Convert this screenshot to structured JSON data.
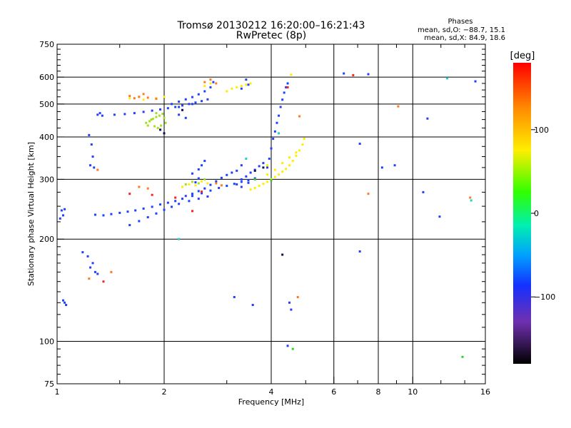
{
  "header": {
    "title_line1": "Tromsø 20130212 16:20:00–16:21:43",
    "title_line2": "RwPretec (8p)",
    "phase_title": "Phases",
    "phase_o": "mean, sd,O: −88.7, 15.1",
    "phase_x": "mean, sd,X:  84.9, 18.6"
  },
  "colorbar": {
    "unit_label": "[deg]",
    "range": [
      -180,
      180
    ],
    "ticks": [
      {
        "value": 100,
        "label": "100"
      },
      {
        "value": 0,
        "label": "0"
      },
      {
        "value": -100,
        "label": "−100"
      }
    ]
  },
  "chart_data": {
    "type": "scatter",
    "xlabel": "Frequency [MHz]",
    "ylabel": "Stationary phase Virtual Height [km]",
    "x_scale": "log",
    "y_scale": "log",
    "xlim": [
      1,
      16
    ],
    "ylim": [
      75,
      750
    ],
    "x_ticks": [
      {
        "value": 1,
        "label": "1"
      },
      {
        "value": 2,
        "label": "2"
      },
      {
        "value": 4,
        "label": "4"
      },
      {
        "value": 6,
        "label": "6"
      },
      {
        "value": 8,
        "label": "8"
      },
      {
        "value": 10,
        "label": "10"
      },
      {
        "value": 16,
        "label": "16"
      }
    ],
    "x_grid": [
      2,
      4,
      6,
      8,
      10
    ],
    "y_ticks": [
      {
        "value": 75,
        "label": "75"
      },
      {
        "value": 100,
        "label": "100"
      },
      {
        "value": 200,
        "label": "200"
      },
      {
        "value": 300,
        "label": "300"
      },
      {
        "value": 400,
        "label": "400"
      },
      {
        "value": 500,
        "label": "500"
      },
      {
        "value": 600,
        "label": "600"
      },
      {
        "value": 750,
        "label": "750"
      }
    ],
    "y_grid": [
      100,
      200,
      300,
      400,
      500,
      600
    ],
    "grid": true,
    "series": [
      {
        "color": "#2040ff",
        "points": [
          [
            1.28,
            236
          ],
          [
            1.35,
            235
          ],
          [
            1.42,
            237
          ],
          [
            1.5,
            239
          ],
          [
            1.58,
            241
          ],
          [
            1.66,
            243
          ],
          [
            1.75,
            246
          ],
          [
            1.85,
            249
          ],
          [
            1.95,
            253
          ],
          [
            2.05,
            256
          ],
          [
            2.15,
            259
          ],
          [
            2.25,
            263
          ],
          [
            2.4,
            268
          ],
          [
            2.55,
            273
          ],
          [
            2.7,
            278
          ],
          [
            2.85,
            283
          ],
          [
            3.0,
            287
          ],
          [
            3.15,
            291
          ],
          [
            3.3,
            295
          ],
          [
            3.45,
            298
          ],
          [
            1.6,
            220
          ],
          [
            1.7,
            226
          ],
          [
            1.8,
            232
          ],
          [
            1.9,
            238
          ],
          [
            2.0,
            244
          ],
          [
            2.1,
            249
          ],
          [
            2.2,
            254
          ],
          [
            2.35,
            259
          ],
          [
            2.5,
            263
          ],
          [
            2.65,
            267
          ],
          [
            2.3,
            268
          ],
          [
            2.4,
            272
          ],
          [
            2.5,
            277
          ],
          [
            2.6,
            282
          ],
          [
            2.7,
            289
          ],
          [
            2.8,
            296
          ],
          [
            2.9,
            303
          ],
          [
            3.0,
            309
          ],
          [
            3.1,
            314
          ],
          [
            3.2,
            318
          ],
          [
            2.4,
            312
          ],
          [
            2.5,
            321
          ],
          [
            2.55,
            330
          ],
          [
            2.6,
            340
          ],
          [
            2.5,
            302
          ],
          [
            2.45,
            294
          ],
          [
            3.2,
            290
          ],
          [
            3.3,
            300
          ],
          [
            3.4,
            306
          ],
          [
            3.5,
            314
          ],
          [
            3.6,
            320
          ],
          [
            3.7,
            328
          ],
          [
            3.8,
            335
          ],
          [
            3.3,
            285
          ],
          [
            3.45,
            293
          ],
          [
            3.6,
            302
          ],
          [
            3.9,
            325
          ],
          [
            3.95,
            345
          ],
          [
            4.0,
            370
          ],
          [
            4.05,
            395
          ],
          [
            4.1,
            415
          ],
          [
            4.15,
            440
          ],
          [
            4.2,
            462
          ],
          [
            4.25,
            490
          ],
          [
            4.3,
            515
          ],
          [
            4.35,
            540
          ],
          [
            4.4,
            560
          ],
          [
            4.45,
            575
          ],
          [
            1.45,
            465
          ],
          [
            1.55,
            467
          ],
          [
            1.65,
            470
          ],
          [
            1.75,
            474
          ],
          [
            1.85,
            478
          ],
          [
            1.95,
            482
          ],
          [
            2.05,
            486
          ],
          [
            2.15,
            490
          ],
          [
            2.25,
            495
          ],
          [
            2.35,
            500
          ],
          [
            2.45,
            505
          ],
          [
            2.55,
            510
          ],
          [
            2.65,
            516
          ],
          [
            2.1,
            500
          ],
          [
            2.2,
            508
          ],
          [
            2.3,
            516
          ],
          [
            2.4,
            524
          ],
          [
            2.5,
            534
          ],
          [
            2.6,
            545
          ],
          [
            2.7,
            560
          ],
          [
            2.75,
            580
          ],
          [
            1.3,
            465
          ],
          [
            1.32,
            470
          ],
          [
            1.34,
            462
          ],
          [
            1.03,
            243
          ],
          [
            1.05,
            245
          ],
          [
            1.02,
            230
          ],
          [
            1.04,
            235
          ],
          [
            1.23,
            405
          ],
          [
            1.25,
            380
          ],
          [
            1.26,
            350
          ],
          [
            1.27,
            325
          ],
          [
            1.24,
            330
          ],
          [
            1.18,
            183
          ],
          [
            1.22,
            178
          ],
          [
            1.26,
            170
          ],
          [
            1.28,
            160
          ],
          [
            1.3,
            158
          ],
          [
            1.24,
            165
          ],
          [
            1.05,
            130
          ],
          [
            1.06,
            128
          ],
          [
            1.04,
            132
          ],
          [
            3.4,
            590
          ],
          [
            3.45,
            570
          ],
          [
            3.3,
            555
          ],
          [
            6.4,
            615
          ],
          [
            7.5,
            612
          ],
          [
            7.1,
            382
          ],
          [
            8.2,
            325
          ],
          [
            8.9,
            330
          ],
          [
            11,
            453
          ],
          [
            10.7,
            275
          ],
          [
            11.9,
            233
          ],
          [
            15,
            583
          ],
          [
            7.1,
            184
          ],
          [
            3.15,
            135
          ],
          [
            3.55,
            128
          ],
          [
            4.5,
            130
          ],
          [
            4.55,
            124
          ],
          [
            4.45,
            97
          ],
          [
            2.2,
            465
          ],
          [
            2.3,
            455
          ],
          [
            2.2,
            490
          ],
          [
            2.4,
            500
          ],
          [
            3.3,
            330
          ]
        ]
      },
      {
        "color": "#ffee00",
        "points": [
          [
            3.5,
            280
          ],
          [
            3.6,
            283
          ],
          [
            3.7,
            287
          ],
          [
            3.8,
            291
          ],
          [
            3.9,
            295
          ],
          [
            4.0,
            300
          ],
          [
            4.1,
            305
          ],
          [
            4.2,
            310
          ],
          [
            4.3,
            316
          ],
          [
            4.4,
            322
          ],
          [
            4.5,
            330
          ],
          [
            4.6,
            340
          ],
          [
            4.7,
            352
          ],
          [
            4.8,
            365
          ],
          [
            4.9,
            380
          ],
          [
            4.95,
            395
          ],
          [
            3.9,
            310
          ],
          [
            4.1,
            320
          ],
          [
            4.3,
            335
          ],
          [
            4.5,
            348
          ],
          [
            4.7,
            360
          ],
          [
            2.25,
            285
          ],
          [
            2.35,
            290
          ],
          [
            2.45,
            288
          ],
          [
            2.55,
            296
          ],
          [
            2.65,
            292
          ],
          [
            3.2,
            560
          ],
          [
            3.3,
            565
          ],
          [
            3.4,
            570
          ],
          [
            3.5,
            575
          ],
          [
            3.1,
            555
          ],
          [
            3.0,
            545
          ],
          [
            1.6,
            520
          ],
          [
            1.7,
            525
          ],
          [
            1.75,
            515
          ],
          [
            1.9,
            520
          ],
          [
            2.0,
            525
          ],
          [
            2.6,
            565
          ],
          [
            2.7,
            575
          ],
          [
            4.55,
            610
          ],
          [
            3.9,
            330
          ]
        ]
      },
      {
        "color": "#a0e020",
        "points": [
          [
            1.78,
            440
          ],
          [
            1.82,
            445
          ],
          [
            1.86,
            452
          ],
          [
            1.9,
            458
          ],
          [
            1.94,
            462
          ],
          [
            1.98,
            468
          ],
          [
            2.0,
            455
          ],
          [
            1.88,
            430
          ],
          [
            1.92,
            425
          ],
          [
            1.96,
            432
          ],
          [
            1.84,
            450
          ],
          [
            1.8,
            432
          ],
          [
            2.02,
            440
          ],
          [
            1.9,
            470
          ],
          [
            2.3,
            290
          ],
          [
            2.4,
            295
          ],
          [
            2.5,
            292
          ],
          [
            2.6,
            300
          ]
        ]
      },
      {
        "color": "#ff7a20",
        "points": [
          [
            1.6,
            528
          ],
          [
            1.65,
            520
          ],
          [
            1.7,
            525
          ],
          [
            1.75,
            535
          ],
          [
            1.8,
            522
          ],
          [
            1.9,
            518
          ],
          [
            2.6,
            580
          ],
          [
            2.7,
            590
          ],
          [
            2.8,
            575
          ],
          [
            1.7,
            285
          ],
          [
            1.8,
            282
          ],
          [
            2.8,
            292
          ],
          [
            2.9,
            288
          ],
          [
            1.23,
            153
          ],
          [
            1.42,
            160
          ],
          [
            1.3,
            320
          ],
          [
            4.8,
            460
          ],
          [
            4.75,
            135
          ],
          [
            9.1,
            492
          ],
          [
            7.5,
            272
          ],
          [
            14.5,
            265
          ]
        ]
      },
      {
        "color": "#ff2020",
        "points": [
          [
            1.85,
            270
          ],
          [
            2.15,
            265
          ],
          [
            2.4,
            242
          ],
          [
            2.55,
            276
          ],
          [
            1.6,
            272
          ],
          [
            1.35,
            150
          ],
          [
            4.45,
            560
          ],
          [
            6.8,
            608
          ]
        ]
      },
      {
        "color": "#20d0d0",
        "points": [
          [
            2.2,
            200
          ],
          [
            3.4,
            345
          ],
          [
            4.2,
            410
          ],
          [
            12.5,
            595
          ],
          [
            14.6,
            260
          ]
        ]
      },
      {
        "color": "#30d030",
        "points": [
          [
            3.6,
            300
          ],
          [
            4.0,
            298
          ],
          [
            13.8,
            90
          ],
          [
            4.6,
            95
          ]
        ]
      },
      {
        "color": "#101050",
        "points": [
          [
            1.95,
            420
          ],
          [
            2.0,
            410
          ],
          [
            2.25,
            480
          ],
          [
            3.8,
            325
          ],
          [
            3.6,
            318
          ],
          [
            4.3,
            180
          ]
        ]
      }
    ]
  }
}
